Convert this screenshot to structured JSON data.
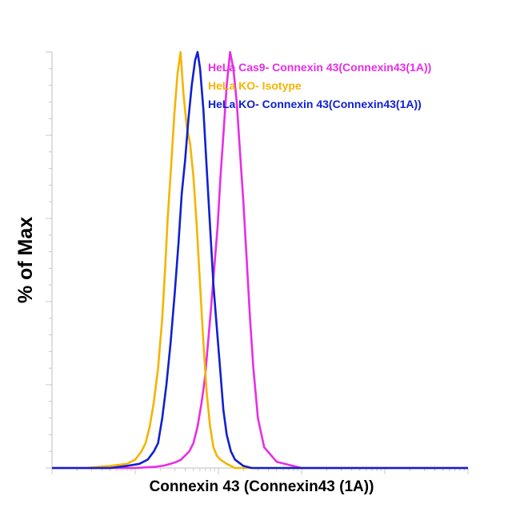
{
  "chart_data": {
    "type": "line",
    "title": "",
    "xlabel": "Connexin 43 (Connexin43 (1A))",
    "ylabel": "% of Max",
    "xscale": "log",
    "xlim": [
      0,
      100
    ],
    "ylim": [
      0,
      100
    ],
    "grid": false,
    "legend_position": "top-right",
    "series": [
      {
        "name": "HeLa Cas9- Connexin 43(Connexin43(1A))",
        "color": "#e62ee6",
        "x": [
          0,
          20,
          25,
          27,
          28.5,
          30,
          31,
          32,
          33,
          34,
          35,
          36,
          36.8,
          37.5,
          38.2,
          39,
          39.8,
          40.5,
          41.2,
          42,
          42.8,
          43.6,
          44.4,
          45.2,
          46,
          46.8,
          47.6,
          48.4,
          49.5,
          51,
          54,
          60,
          100
        ],
        "y": [
          0,
          0,
          0.3,
          0.6,
          1,
          1.5,
          2,
          3,
          4,
          6,
          10,
          16,
          22,
          30,
          38,
          48,
          58,
          70,
          80,
          92,
          100,
          96,
          88,
          76,
          64,
          50,
          36,
          24,
          12,
          5,
          1.5,
          0,
          0
        ]
      },
      {
        "name": "HeLa KO- Isotype",
        "color": "#f5b400",
        "x": [
          0,
          8,
          14,
          18,
          20,
          21.5,
          22.5,
          23.5,
          24.5,
          25.5,
          26.5,
          27.2,
          27.8,
          28.6,
          29.4,
          30.2,
          30.9,
          31.6,
          32.4,
          33.2,
          34,
          34.8,
          35.6,
          36.4,
          37.2,
          38,
          38.8,
          39.6,
          40.5,
          42,
          44,
          100
        ],
        "y": [
          0,
          0,
          0.5,
          1,
          2,
          4,
          6,
          10,
          16,
          24,
          36,
          48,
          60,
          72,
          85,
          95,
          100,
          90,
          82,
          78,
          70,
          58,
          44,
          30,
          18,
          10,
          5,
          3,
          2,
          1,
          0,
          0
        ]
      },
      {
        "name": "HeLa KO- Connexin 43(Connexin43(1A))",
        "color": "#1020d0",
        "x": [
          0,
          14,
          18,
          21,
          23,
          24.5,
          25.5,
          26.5,
          27.5,
          28.5,
          29.5,
          30.4,
          31.2,
          32,
          32.8,
          33.6,
          34.4,
          35,
          35.6,
          36.4,
          37.2,
          38,
          38.8,
          39.6,
          40.4,
          41.2,
          42,
          43,
          44,
          46,
          48,
          100
        ],
        "y": [
          0,
          0,
          0.5,
          1,
          2,
          4,
          6,
          12,
          20,
          30,
          42,
          54,
          66,
          74,
          84,
          92,
          98,
          100,
          96,
          86,
          72,
          58,
          44,
          34,
          24,
          14,
          8,
          4,
          2,
          0.5,
          0,
          0
        ]
      }
    ]
  }
}
